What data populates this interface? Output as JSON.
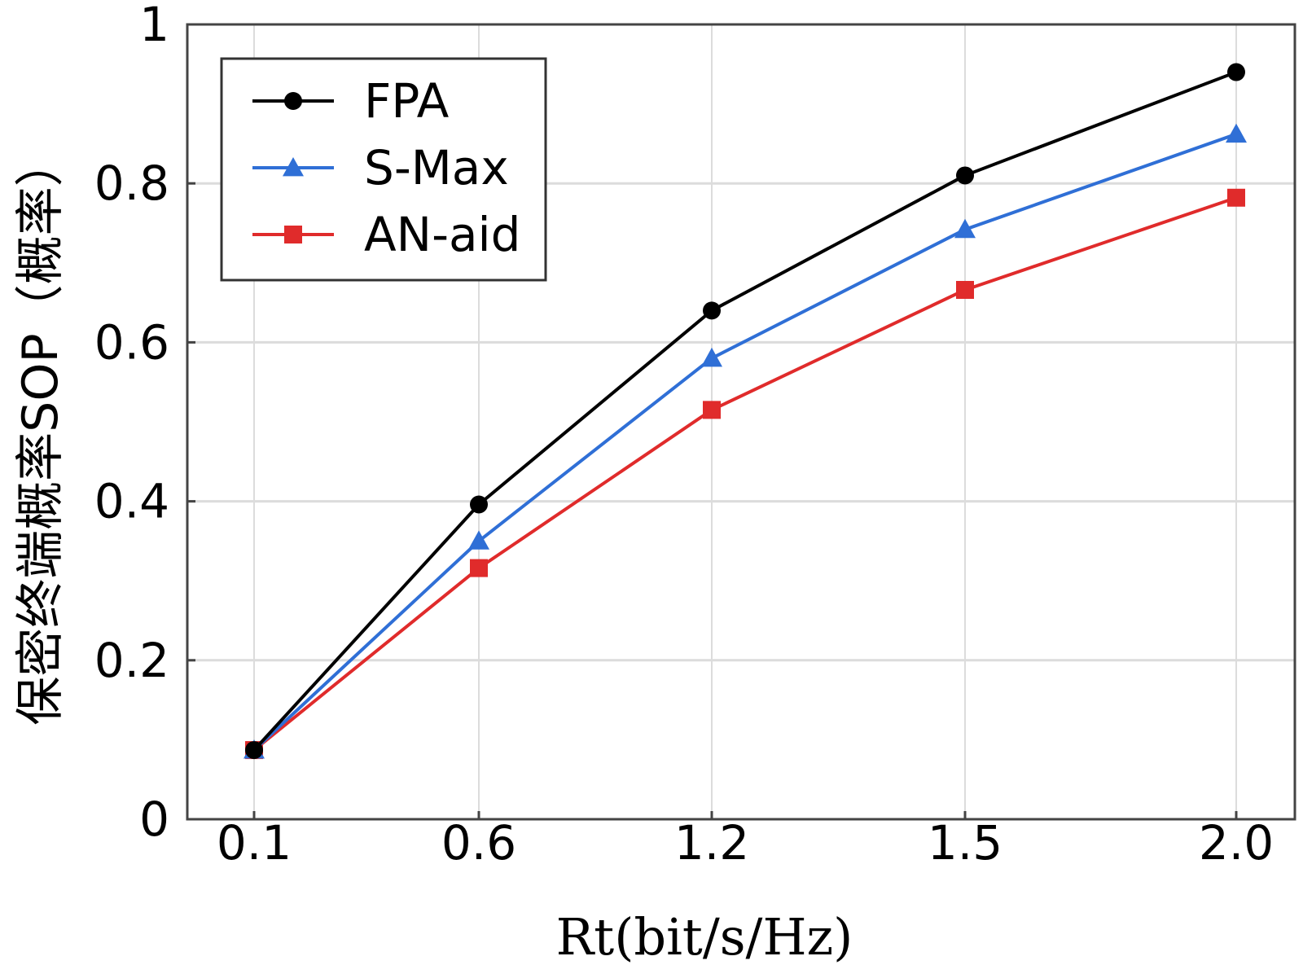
{
  "chart_data": {
    "type": "line",
    "title": "",
    "xlabel": "Rt(bit/s/Hz)",
    "ylabel": "保密终端概率SOP（概率）",
    "categories": [
      "0.1",
      "0.6",
      "1.2",
      "1.5",
      "2.0"
    ],
    "ylim": [
      0,
      1
    ],
    "yticks": [
      "0",
      "0.2",
      "0.4",
      "0.6",
      "0.8",
      "1"
    ],
    "ytick_values": [
      0,
      0.2,
      0.4,
      0.6,
      0.8,
      1
    ],
    "grid": true,
    "legend_position": "top-left",
    "series": [
      {
        "name": "FPA",
        "color": "#000000",
        "marker": "circle",
        "values": [
          0.087,
          0.396,
          0.64,
          0.81,
          0.94
        ]
      },
      {
        "name": "S-Max",
        "color": "#2f6fd6",
        "marker": "triangle",
        "values": [
          0.087,
          0.35,
          0.58,
          0.742,
          0.862
        ]
      },
      {
        "name": "AN-aid",
        "color": "#e02b2b",
        "marker": "square",
        "values": [
          0.087,
          0.316,
          0.515,
          0.666,
          0.782
        ]
      }
    ]
  }
}
